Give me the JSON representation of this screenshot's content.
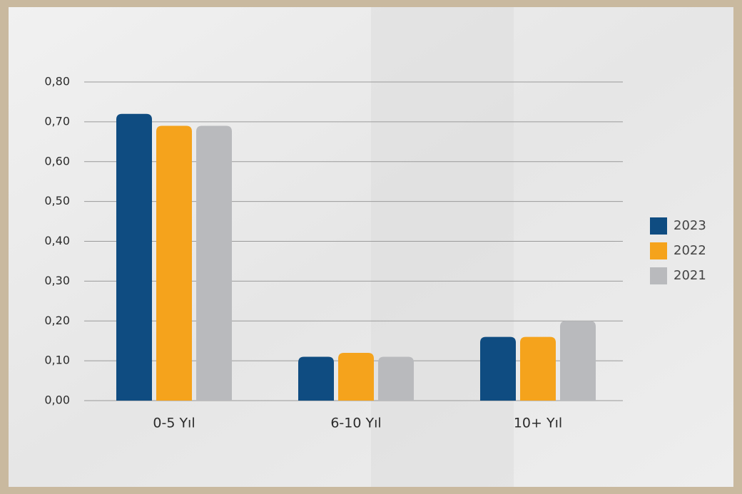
{
  "chart_data": {
    "type": "bar",
    "categories": [
      "0-5 Yıl",
      "6-10 Yıl",
      "10+ Yıl"
    ],
    "series": [
      {
        "name": "2023",
        "color": "#0f4c81",
        "values": [
          0.72,
          0.11,
          0.16
        ]
      },
      {
        "name": "2022",
        "color": "#f5a31c",
        "values": [
          0.69,
          0.12,
          0.16
        ]
      },
      {
        "name": "2021",
        "color": "#b9babd",
        "values": [
          0.69,
          0.11,
          0.2
        ]
      }
    ],
    "ylim": [
      0,
      0.8
    ],
    "yticks": [
      {
        "value": 0,
        "label": "0,00"
      },
      {
        "value": 0.1,
        "label": "0,10"
      },
      {
        "value": 0.2,
        "label": "0,20"
      },
      {
        "value": 0.3,
        "label": "0,30"
      },
      {
        "value": 0.4,
        "label": "0,40"
      },
      {
        "value": 0.5,
        "label": "0,50"
      },
      {
        "value": 0.6,
        "label": "0,60"
      },
      {
        "value": 0.7,
        "label": "0,70"
      },
      {
        "value": 0.8,
        "label": "0,80"
      }
    ],
    "grid": true,
    "legend": "right"
  }
}
